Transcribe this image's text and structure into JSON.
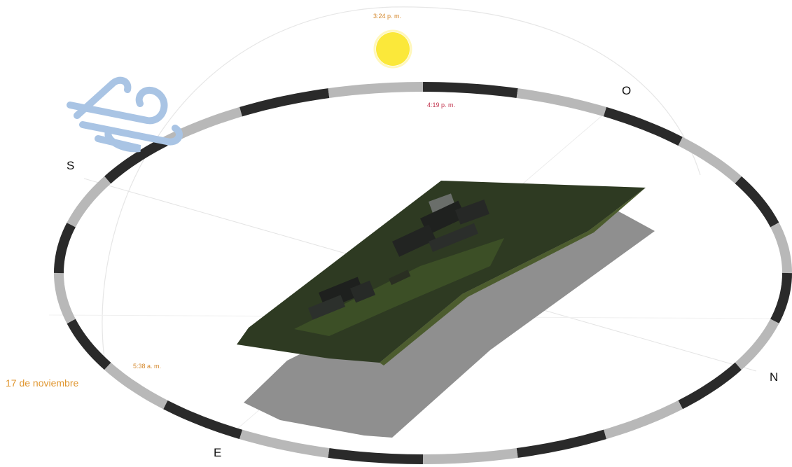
{
  "compass": {
    "south": "S",
    "west": "O",
    "north": "N",
    "east": "E"
  },
  "sun_path": {
    "sun_time": "3:24 p. m.",
    "sunset_time": "4:19 p. m.",
    "sunrise_time": "5:38 a. m.",
    "date": "17 de noviembre"
  },
  "icons": {
    "wind": "wind-icon",
    "sun": "sun-icon"
  },
  "colors": {
    "sun": "#fbe83a",
    "wind": "#a9c4e4",
    "sunrise_label": "#d4872a",
    "sunset_label": "#c2334d",
    "ring_dark": "#2a2a2a",
    "ring_light": "#b8b8b8",
    "terrain": "#2e3a22",
    "shadow": "#8f8f8f"
  }
}
